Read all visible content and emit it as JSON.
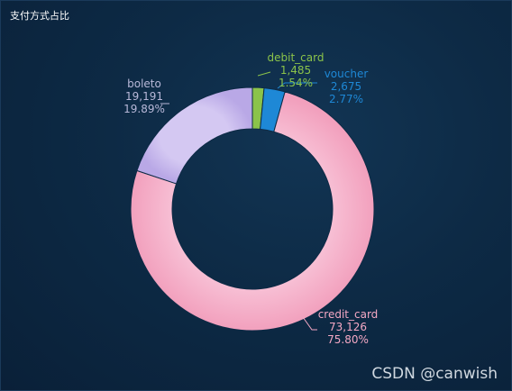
{
  "panel": {
    "title": "支付方式占比",
    "watermark": "CSDN @canwish"
  },
  "chart_data": {
    "type": "pie",
    "title": "支付方式占比",
    "donut": true,
    "slices": [
      {
        "name": "debit_card",
        "value": 1485,
        "value_label": "1,485",
        "percent_label": "1.54%",
        "color": "#8bc34a",
        "label_color": "#8bc34a"
      },
      {
        "name": "voucher",
        "value": 2675,
        "value_label": "2,675",
        "percent_label": "2.77%",
        "color": "#1e88d6",
        "label_color": "#1e88d6"
      },
      {
        "name": "credit_card",
        "value": 73126,
        "value_label": "73,126",
        "percent_label": "75.80%",
        "color": "#f4a8c4",
        "label_color": "#f4a8c4"
      },
      {
        "name": "boleto",
        "value": 19191,
        "value_label": "19,191",
        "percent_label": "19.89%",
        "color": "#c8b8ec",
        "label_color": "#b8b8d8"
      }
    ]
  }
}
